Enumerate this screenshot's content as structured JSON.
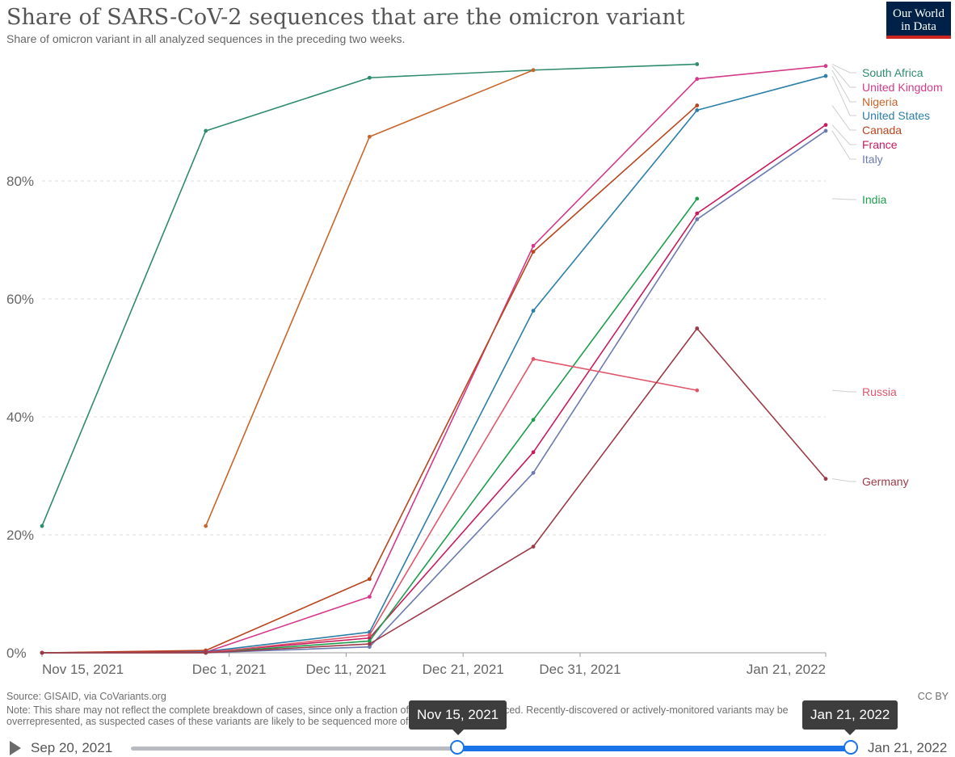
{
  "header": {
    "title": "Share of SARS-CoV-2 sequences that are the omicron variant",
    "subtitle": "Share of omicron variant in all analyzed sequences in the preceding two weeks.",
    "logo_line1": "Our World",
    "logo_line2": "in Data"
  },
  "chart_data": {
    "type": "line",
    "title": "Share of SARS-CoV-2 sequences that are the omicron variant",
    "subtitle": "Share of omicron variant in all analyzed sequences in the preceding two weeks.",
    "xlim": [
      "2021-11-15",
      "2022-01-21"
    ],
    "ylim": [
      0,
      100
    ],
    "x_ticks": [
      {
        "date": "2021-11-15",
        "label": "Nov 15, 2021"
      },
      {
        "date": "2021-12-01",
        "label": "Dec 1, 2021"
      },
      {
        "date": "2021-12-11",
        "label": "Dec 11, 2021"
      },
      {
        "date": "2021-12-21",
        "label": "Dec 21, 2021"
      },
      {
        "date": "2021-12-31",
        "label": "Dec 31, 2021"
      },
      {
        "date": "2022-01-21",
        "label": "Jan 21, 2022"
      }
    ],
    "y_ticks": [
      {
        "value": 0,
        "label": "0%"
      },
      {
        "value": 20,
        "label": "20%"
      },
      {
        "value": 40,
        "label": "40%"
      },
      {
        "value": 60,
        "label": "60%"
      },
      {
        "value": 80,
        "label": "80%"
      }
    ],
    "grid": "horizontal dashed",
    "legend": "right (direct labels)",
    "series": [
      {
        "name": "South Africa",
        "color": "#2e8b6e",
        "points": [
          [
            "2021-11-15",
            21.5
          ],
          [
            "2021-11-29",
            88.5
          ],
          [
            "2021-12-13",
            97.5
          ],
          [
            "2021-12-27",
            98.8
          ],
          [
            "2022-01-10",
            99.8
          ]
        ]
      },
      {
        "name": "United Kingdom",
        "color": "#d4398a",
        "points": [
          [
            "2021-11-15",
            0
          ],
          [
            "2021-11-29",
            0.1
          ],
          [
            "2021-12-13",
            9.5
          ],
          [
            "2021-12-27",
            69
          ],
          [
            "2022-01-10",
            97.3
          ],
          [
            "2022-01-21",
            99.5
          ]
        ]
      },
      {
        "name": "Nigeria",
        "color": "#c8652a",
        "points": [
          [
            "2021-11-29",
            21.5
          ],
          [
            "2021-12-13",
            87.5
          ],
          [
            "2021-12-27",
            98.8
          ]
        ]
      },
      {
        "name": "United States",
        "color": "#2b7fa8",
        "points": [
          [
            "2021-11-15",
            0
          ],
          [
            "2021-11-29",
            0.2
          ],
          [
            "2021-12-13",
            3.5
          ],
          [
            "2021-12-27",
            58
          ],
          [
            "2022-01-10",
            92
          ],
          [
            "2022-01-21",
            97.8
          ]
        ]
      },
      {
        "name": "Canada",
        "color": "#b8451e",
        "points": [
          [
            "2021-11-15",
            0
          ],
          [
            "2021-11-29",
            0.4
          ],
          [
            "2021-12-13",
            12.5
          ],
          [
            "2021-12-27",
            68
          ],
          [
            "2022-01-10",
            92.8
          ]
        ]
      },
      {
        "name": "France",
        "color": "#c71b5e",
        "points": [
          [
            "2021-11-15",
            0
          ],
          [
            "2021-11-29",
            0.1
          ],
          [
            "2021-12-13",
            2.5
          ],
          [
            "2021-12-27",
            34
          ],
          [
            "2022-01-10",
            74.5
          ],
          [
            "2022-01-21",
            89.5
          ]
        ]
      },
      {
        "name": "Italy",
        "color": "#6b7bb0",
        "points": [
          [
            "2021-11-15",
            0
          ],
          [
            "2021-11-29",
            0
          ],
          [
            "2021-12-13",
            1
          ],
          [
            "2021-12-27",
            30.5
          ],
          [
            "2022-01-10",
            73.5
          ],
          [
            "2022-01-21",
            88.5
          ]
        ]
      },
      {
        "name": "India",
        "color": "#1f9e4e",
        "points": [
          [
            "2021-11-15",
            0
          ],
          [
            "2021-11-29",
            0
          ],
          [
            "2021-12-13",
            2
          ],
          [
            "2021-12-27",
            39.5
          ],
          [
            "2022-01-10",
            77
          ]
        ]
      },
      {
        "name": "Russia",
        "color": "#e0566b",
        "points": [
          [
            "2021-11-15",
            0
          ],
          [
            "2021-11-29",
            0
          ],
          [
            "2021-12-13",
            3
          ],
          [
            "2021-12-27",
            49.8
          ],
          [
            "2022-01-10",
            44.5
          ]
        ]
      },
      {
        "name": "Germany",
        "color": "#9b3b48",
        "points": [
          [
            "2021-11-15",
            0
          ],
          [
            "2021-11-29",
            0
          ],
          [
            "2021-12-13",
            1.5
          ],
          [
            "2021-12-27",
            18
          ],
          [
            "2022-01-10",
            55
          ],
          [
            "2022-01-21",
            29.5
          ]
        ]
      }
    ]
  },
  "footer": {
    "source": "Source: GISAID, via CoVariants.org",
    "note_line1": "Note: This share may not reflect the complete breakdown of cases, since only a fraction of all cases are sequenced. Recently-discovered or actively-monitored variants may be",
    "note_line2": "overrepresented, as suspected cases of these variants are likely to be sequenced more often than other cases.",
    "license": "CC BY"
  },
  "timeline": {
    "start_label": "Sep 20, 2021",
    "end_label": "Jan 21, 2022",
    "handle_left_label": "Nov 15, 2021",
    "handle_right_label": "Jan 21, 2022",
    "selected_fraction": [
      0.45,
      1.0
    ]
  }
}
